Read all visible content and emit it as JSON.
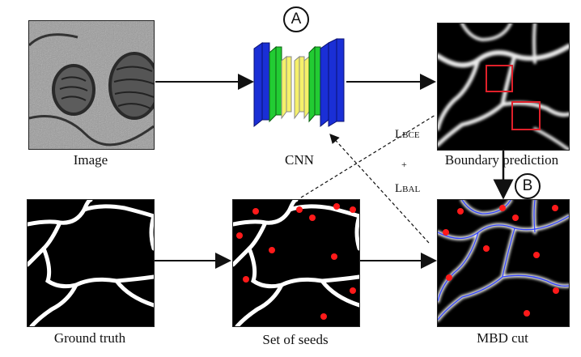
{
  "labels": {
    "image": "Image",
    "cnn": "CNN",
    "boundary_prediction": "Boundary prediction",
    "ground_truth": "Ground truth",
    "set_of_seeds": "Set of seeds",
    "mbd_cut": "MBD cut"
  },
  "markers": {
    "a": "A",
    "b": "B"
  },
  "losses": {
    "bce_main": "L",
    "bce_sub": "BCE",
    "plus": "+",
    "bal_main": "L",
    "bal_sub": "BAL"
  },
  "colors": {
    "seed": "#ff1a1a",
    "cut_line": "#3344ff",
    "cnn_outer": "#1a2fd6",
    "cnn_middle": "#22cc33",
    "cnn_inner": "#f5f06a",
    "highlight_box": "#e0202a"
  }
}
